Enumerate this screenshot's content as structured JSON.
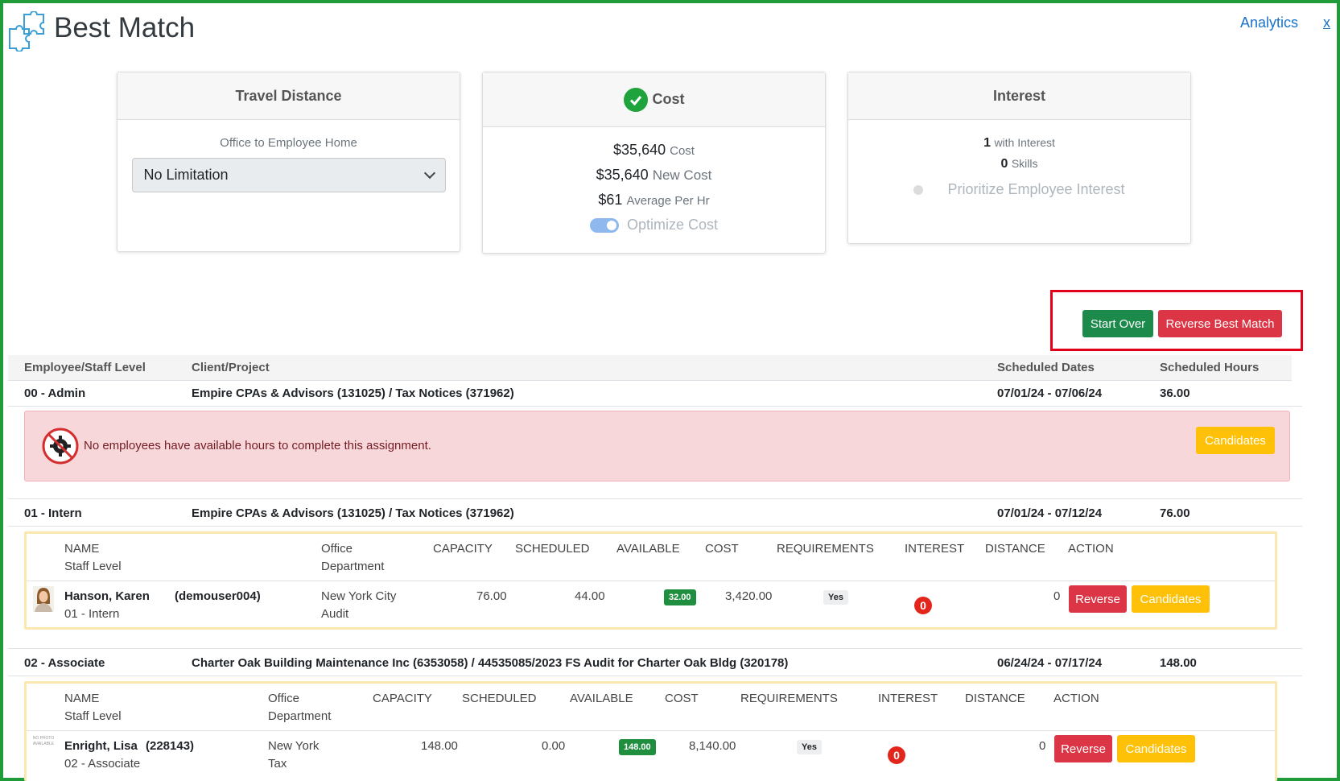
{
  "header": {
    "title": "Best Match",
    "analytics_link": "Analytics",
    "close_link": "x"
  },
  "cards": {
    "travel": {
      "title": "Travel Distance",
      "sub_label": "Office to Employee Home",
      "select_value": "No Limitation"
    },
    "cost": {
      "title": "Cost",
      "cost_value": "$35,640",
      "cost_label": "Cost",
      "new_cost_value": "$35,640",
      "new_cost_label": "New Cost",
      "avg_value": "$61",
      "avg_label": "Average Per Hr",
      "toggle_label": "Optimize Cost",
      "toggle_on": true
    },
    "interest": {
      "title": "Interest",
      "with_interest_value": "1",
      "with_interest_label": "with Interest",
      "skills_value": "0",
      "skills_label": "Skills",
      "radio_label": "Prioritize Employee Interest"
    }
  },
  "actions": {
    "start_over": "Start Over",
    "reverse_best_match": "Reverse Best Match"
  },
  "table": {
    "headers": {
      "employee": "Employee/Staff Level",
      "client": "Client/Project",
      "dates": "Scheduled Dates",
      "hours": "Scheduled Hours"
    },
    "groups": [
      {
        "level": "00 - Admin",
        "client": "Empire CPAs & Advisors (131025) / Tax Notices (371962)",
        "dates": "07/01/24 - 07/06/24",
        "hours": "36.00",
        "alert": "No employees have available hours to complete this assignment.",
        "candidates_label": "Candidates"
      },
      {
        "level": "01 - Intern",
        "client": "Empire CPAs & Advisors (131025) / Tax Notices (371962)",
        "dates": "07/01/24 - 07/12/24",
        "hours": "76.00"
      },
      {
        "level": "02 - Associate",
        "client": "Charter Oak Building Maintenance Inc (6353058) / 44535085/2023 FS Audit for Charter Oak Bldg (320178)",
        "dates": "06/24/24 - 07/17/24",
        "hours": "148.00"
      }
    ],
    "detail_headers": {
      "name": "NAME",
      "staff_level": "Staff Level",
      "office": "Office",
      "department": "Department",
      "capacity": "CAPACITY",
      "scheduled": "SCHEDULED",
      "available": "AVAILABLE",
      "cost": "COST",
      "requirements": "REQUIREMENTS",
      "interest": "INTEREST",
      "distance": "DISTANCE",
      "action": "ACTION"
    },
    "employees": [
      {
        "name": "Hanson, Karen",
        "user_id": "(demouser004)",
        "staff_level": "01 - Intern",
        "office": "New York City",
        "department": "Audit",
        "capacity": "76.00",
        "scheduled": "44.00",
        "available": "32.00",
        "cost": "3,420.00",
        "requirements": "Yes",
        "interest": "0",
        "distance": "0",
        "reverse_label": "Reverse",
        "candidates_label": "Candidates"
      },
      {
        "name": "Enright, Lisa",
        "user_id": "(228143)",
        "staff_level": "02 - Associate",
        "office": "New York",
        "department": "Tax",
        "capacity": "148.00",
        "scheduled": "0.00",
        "available": "148.00",
        "cost": "8,140.00",
        "requirements": "Yes",
        "interest": "0",
        "distance": "0",
        "reverse_label": "Reverse",
        "candidates_label": "Candidates",
        "photo_placeholder": "NO PHOTO AVAILABLE"
      }
    ]
  },
  "colors": {
    "frame": "#1f9b3a",
    "accent_link": "#1a73c9",
    "success": "#1c8a4b",
    "danger": "#dc3545",
    "warning": "#ffc107",
    "highlight": "#e3001b"
  },
  "icons": {
    "logo": "puzzle-icon",
    "cost_status": "check-circle-icon",
    "dropdown": "chevron-down-icon",
    "alert": "no-gear-icon"
  }
}
